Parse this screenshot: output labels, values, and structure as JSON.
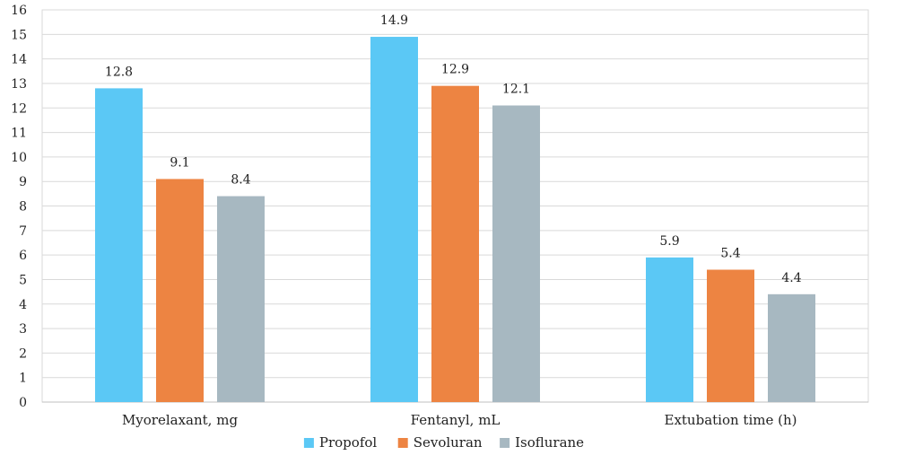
{
  "chart_data": {
    "type": "bar",
    "categories": [
      "Myorelaxant, mg",
      "Fentanyl, mL",
      "Extubation time (h)"
    ],
    "series": [
      {
        "name": "Propofol",
        "values": [
          12.8,
          14.9,
          5.9
        ],
        "color": "#5BC8F5"
      },
      {
        "name": "Sevoluran",
        "values": [
          9.1,
          12.9,
          5.4
        ],
        "color": "#ED8442"
      },
      {
        "name": "Isoflurane",
        "values": [
          8.4,
          12.1,
          4.4
        ],
        "color": "#A7B8C1"
      }
    ],
    "data_labels": [
      [
        "12.8",
        "9.1",
        "8.4"
      ],
      [
        "14.9",
        "12.9",
        "12.1"
      ],
      [
        "5.9",
        "5.4",
        "4.4"
      ]
    ],
    "y_ticks": [
      "0",
      "1",
      "2",
      "3",
      "4",
      "5",
      "6",
      "7",
      "8",
      "9",
      "10",
      "11",
      "12",
      "13",
      "14",
      "15",
      "16"
    ],
    "ylim": [
      0,
      16
    ],
    "grid": true,
    "legend_position": "bottom",
    "title": "",
    "xlabel": "",
    "ylabel": ""
  }
}
